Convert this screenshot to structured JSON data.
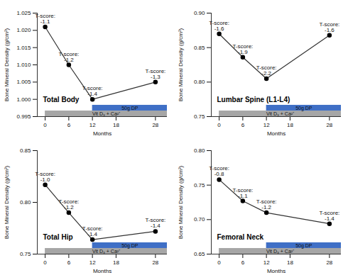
{
  "chart_data": [
    {
      "type": "line",
      "title": "Total Body",
      "x_label": "Months",
      "y_label": "Bone Mineral Density (g/cm²)",
      "x": [
        0,
        6,
        12,
        28
      ],
      "values": [
        1.021,
        1.01,
        1.0,
        1.005
      ],
      "color": "#333333",
      "marker": "circle",
      "xlim": [
        -2,
        31
      ],
      "xticks": [
        0,
        6,
        12,
        18,
        28
      ],
      "ylim": [
        0.995,
        1.025
      ],
      "yticks": [
        0.995,
        {
          "value": 1,
          "label": "1.000"
        },
        1.005,
        {
          "value": 1.01,
          "label": "1.010"
        },
        1.015,
        {
          "value": 1.02,
          "label": "1.020"
        },
        1.025
      ],
      "annotations": [
        {
          "x": 0,
          "text": "T-score:\n-1.1"
        },
        {
          "x": 6,
          "text": "T-score:\n-1.2"
        },
        {
          "x": 12,
          "text": "T-score:\n-1.4"
        },
        {
          "x": 28,
          "text": "T-score:\n-1.3"
        }
      ],
      "bars": [
        {
          "label": "Vit D₃ + Ca²⁺",
          "start": 0,
          "end": 31,
          "color": "#a6a6a6"
        },
        {
          "label": "50g DP",
          "start": 12,
          "end": 31,
          "color": "#3f6fc6"
        }
      ]
    },
    {
      "type": "line",
      "title": "Lumbar Spine (L1-L4)",
      "x_label": "Months",
      "y_label": "Bone Mineral Density (g/cm²)",
      "x": [
        0,
        6,
        12,
        28
      ],
      "values": [
        0.87,
        0.836,
        0.805,
        0.868
      ],
      "color": "#333333",
      "marker": "circle",
      "xlim": [
        -2,
        31
      ],
      "xticks": [
        0,
        6,
        12,
        18,
        28
      ],
      "ylim": [
        0.75,
        0.9
      ],
      "yticks": [
        0.75,
        {
          "value": 0.8,
          "label": "0.80"
        },
        0.85,
        {
          "value": 0.9,
          "label": "0.90"
        }
      ],
      "annotations": [
        {
          "x": 0,
          "text": "T-score:\n-1.6"
        },
        {
          "x": 6,
          "text": "T-score:\n-1.9"
        },
        {
          "x": 12,
          "text": "T-score:\n-2.2"
        },
        {
          "x": 28,
          "text": "T-score:\n-1.6"
        }
      ],
      "bars": [
        {
          "label": "Vit D₃ + Ca²⁺",
          "start": 0,
          "end": 31,
          "color": "#a6a6a6"
        },
        {
          "label": "50g DP",
          "start": 12,
          "end": 31,
          "color": "#3f6fc6"
        }
      ]
    },
    {
      "type": "line",
      "title": "Total Hip",
      "x_label": "Months",
      "y_label": "Bone Mineral Density (g/cm²)",
      "x": [
        0,
        6,
        12,
        28
      ],
      "values": [
        0.817,
        0.79,
        0.764,
        0.772
      ],
      "color": "#333333",
      "marker": "circle",
      "xlim": [
        -2,
        31
      ],
      "xticks": [
        0,
        6,
        12,
        18,
        28
      ],
      "ylim": [
        0.75,
        0.85
      ],
      "yticks": [
        0.75,
        {
          "value": 0.8,
          "label": "0.80"
        },
        0.85
      ],
      "annotations": [
        {
          "x": 0,
          "text": "T-score:\n-1.0"
        },
        {
          "x": 6,
          "text": "T-score:\n-1.2"
        },
        {
          "x": 12,
          "text": "T-score:\n-1.4"
        },
        {
          "x": 28,
          "text": "T-score:\n-1.4"
        }
      ],
      "bars": [
        {
          "label": "Vit D₃ + Ca²⁺",
          "start": 0,
          "end": 31,
          "color": "#a6a6a6"
        },
        {
          "label": "50g DP",
          "start": 12,
          "end": 31,
          "color": "#3f6fc6"
        }
      ]
    },
    {
      "type": "line",
      "title": "Femoral Neck",
      "x_label": "Months",
      "y_label": "Bone Mineral Density (g/cm²)",
      "x": [
        0,
        6,
        12,
        28
      ],
      "values": [
        0.758,
        0.727,
        0.71,
        0.694
      ],
      "color": "#333333",
      "marker": "circle",
      "xlim": [
        -2,
        31
      ],
      "xticks": [
        0,
        6,
        12,
        18,
        28
      ],
      "ylim": [
        0.65,
        0.8
      ],
      "yticks": [
        0.65,
        {
          "value": 0.7,
          "label": "0.70"
        },
        0.75,
        {
          "value": 0.8,
          "label": "0.80"
        }
      ],
      "annotations": [
        {
          "x": 0,
          "text": "T-score:\n-0.8"
        },
        {
          "x": 6,
          "text": "T-score:\n-1.1"
        },
        {
          "x": 12,
          "text": "T-score:\n-1.2"
        },
        {
          "x": 28,
          "text": "T-score:\n-1.4"
        }
      ],
      "bars": [
        {
          "label": "Vit D₃ + Ca²⁺",
          "start": 0,
          "end": 31,
          "color": "#a6a6a6"
        },
        {
          "label": "50g DP",
          "start": 12,
          "end": 31,
          "color": "#3f6fc6"
        }
      ]
    }
  ]
}
